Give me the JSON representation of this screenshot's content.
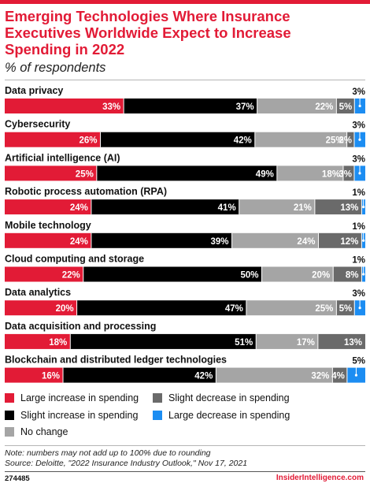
{
  "header": {
    "title": "Emerging Technologies Where Insurance Executives Worldwide Expect to Increase Spending in 2022",
    "subtitle": "% of respondents"
  },
  "footer": {
    "note": "Note: numbers may not add up to 100% due to rounding",
    "source": "Source: Deloitte, \"2022 Insurance Industry Outlook,\" Nov 17, 2021",
    "figure_id": "274485",
    "brand": "InsiderIntelligence.com"
  },
  "colors": {
    "large_increase": "#e21b36",
    "slight_increase": "#000000",
    "no_change": "#a5a5a5",
    "slight_decrease": "#6a6a6a",
    "large_decrease": "#1c8df2",
    "accent": "#e21b36"
  },
  "chart_data": {
    "type": "bar",
    "orientation": "horizontal",
    "stacked": true,
    "title": "Emerging Technologies Where Insurance Executives Worldwide Expect to Increase Spending in 2022",
    "subtitle": "% of respondents",
    "legend_position": "bottom",
    "grid": false,
    "categories": [
      "Data privacy",
      "Cybersecurity",
      "Artificial intelligence (AI)",
      "Robotic process automation (RPA)",
      "Mobile technology",
      "Cloud computing and storage",
      "Data analytics",
      "Data acquisition and processing",
      "Blockchain and distributed ledger technologies"
    ],
    "series": [
      {
        "name": "Large increase in spending",
        "values": [
          33,
          26,
          25,
          24,
          24,
          22,
          20,
          18,
          16
        ]
      },
      {
        "name": "Slight increase in spending",
        "values": [
          37,
          42,
          49,
          41,
          39,
          50,
          47,
          51,
          42
        ]
      },
      {
        "name": "No change",
        "values": [
          22,
          25,
          18,
          21,
          24,
          20,
          25,
          17,
          32
        ]
      },
      {
        "name": "Slight decrease in spending",
        "values": [
          5,
          2,
          3,
          13,
          12,
          8,
          5,
          13,
          4
        ]
      },
      {
        "name": "Large decrease in spending",
        "values": [
          3,
          3,
          3,
          1,
          1,
          1,
          3,
          0,
          5
        ]
      }
    ],
    "unit": "%"
  }
}
